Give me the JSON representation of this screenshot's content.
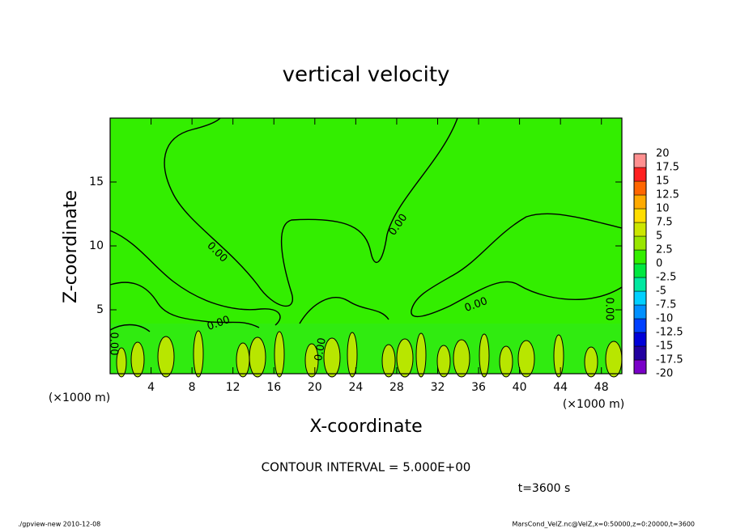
{
  "chart_data": {
    "type": "contour",
    "title": "vertical velocity",
    "xlabel": "X-coordinate",
    "ylabel": "Z-coordinate",
    "x_unit": "(×1000 m)",
    "y_unit": "(×1000 m)",
    "xlim": [
      0,
      50
    ],
    "ylim": [
      0,
      20
    ],
    "xticks": [
      4,
      8,
      12,
      16,
      20,
      24,
      28,
      32,
      36,
      40,
      44,
      48
    ],
    "yticks": [
      5,
      10,
      15
    ],
    "contour_labels": [
      "0.00",
      "0.00",
      "0.00",
      "0.00",
      "0.00",
      "0.00",
      "0.00"
    ],
    "colorbar": {
      "levels": [
        -20,
        -17.5,
        -15,
        -12.5,
        -10,
        -7.5,
        -5,
        -2.5,
        0,
        2.5,
        5,
        7.5,
        10,
        12.5,
        15,
        17.5,
        20
      ],
      "colors": [
        "#7a00c8",
        "#2200a0",
        "#0000d8",
        "#0040ff",
        "#0090ff",
        "#00d0ff",
        "#00e8a0",
        "#00e840",
        "#33ee00",
        "#99e600",
        "#cce600",
        "#ffdd00",
        "#ffaa00",
        "#ff6600",
        "#ff2020",
        "#ff9090"
      ]
    },
    "contour_interval": "CONTOUR INTERVAL = 5.000E+00",
    "time_label": "t=3600 s",
    "footer_left": "./gpview-new  2010-12-08",
    "footer_right": "MarsCond_VelZ.nc@VelZ,x=0:50000,z=0:20000,t=3600"
  }
}
